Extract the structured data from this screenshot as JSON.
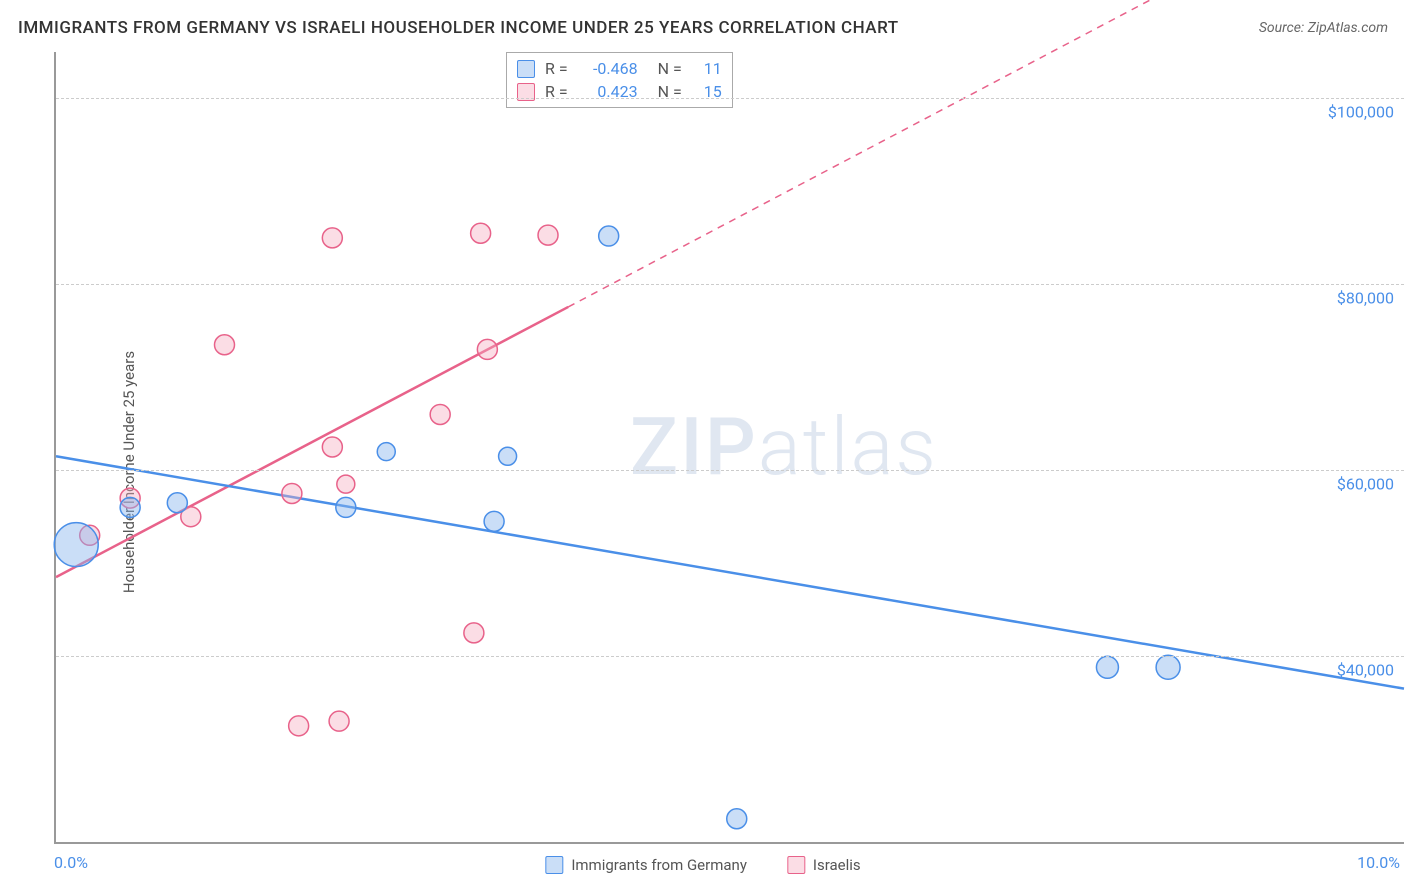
{
  "title": "IMMIGRANTS FROM GERMANY VS ISRAELI HOUSEHOLDER INCOME UNDER 25 YEARS CORRELATION CHART",
  "source": "Source: ZipAtlas.com",
  "y_axis_label": "Householder Income Under 25 years",
  "watermark_a": "ZIP",
  "watermark_b": "atlas",
  "chart": {
    "type": "scatter",
    "xlim": [
      0,
      10
    ],
    "ylim": [
      20000,
      105000
    ],
    "x_ticks": [
      {
        "value": 0,
        "label": "0.0%"
      },
      {
        "value": 10,
        "label": "10.0%"
      }
    ],
    "y_ticks": [
      {
        "value": 40000,
        "label": "$40,000"
      },
      {
        "value": 60000,
        "label": "$60,000"
      },
      {
        "value": 80000,
        "label": "$80,000"
      },
      {
        "value": 100000,
        "label": "$100,000"
      }
    ],
    "grid_color": "#cccccc",
    "background_color": "#ffffff",
    "axis_color": "#999999",
    "tick_label_color": "#4a8fe8",
    "series": [
      {
        "name": "Immigrants from Germany",
        "legend_label": "Immigrants from Germany",
        "fill": "rgba(137,181,237,0.45)",
        "stroke": "#4a8fe8",
        "line_width": 2.5,
        "marker_radius": 10,
        "correlation_R": "-0.468",
        "correlation_N": "11",
        "points": [
          {
            "x": 0.15,
            "y": 52000,
            "r": 22
          },
          {
            "x": 0.55,
            "y": 56000,
            "r": 10
          },
          {
            "x": 0.9,
            "y": 56500,
            "r": 10
          },
          {
            "x": 2.15,
            "y": 56000,
            "r": 10
          },
          {
            "x": 2.45,
            "y": 62000,
            "r": 9
          },
          {
            "x": 3.25,
            "y": 54500,
            "r": 10
          },
          {
            "x": 3.35,
            "y": 61500,
            "r": 9
          },
          {
            "x": 4.1,
            "y": 85200,
            "r": 10
          },
          {
            "x": 5.05,
            "y": 22500,
            "r": 10
          },
          {
            "x": 7.8,
            "y": 38800,
            "r": 11
          },
          {
            "x": 8.25,
            "y": 38800,
            "r": 12
          }
        ],
        "trend": {
          "x1": 0,
          "y1": 61500,
          "x2": 10,
          "y2": 36500,
          "solid_until_x": 10
        }
      },
      {
        "name": "Israelis",
        "legend_label": "Israelis",
        "fill": "rgba(244,170,190,0.40)",
        "stroke": "#e8628a",
        "line_width": 2.5,
        "marker_radius": 10,
        "correlation_R": "0.423",
        "correlation_N": "15",
        "points": [
          {
            "x": 0.25,
            "y": 53000,
            "r": 10
          },
          {
            "x": 0.55,
            "y": 57000,
            "r": 10
          },
          {
            "x": 1.0,
            "y": 55000,
            "r": 10
          },
          {
            "x": 1.25,
            "y": 73500,
            "r": 10
          },
          {
            "x": 1.75,
            "y": 57500,
            "r": 10
          },
          {
            "x": 1.8,
            "y": 32500,
            "r": 10
          },
          {
            "x": 2.05,
            "y": 85000,
            "r": 10
          },
          {
            "x": 2.05,
            "y": 62500,
            "r": 10
          },
          {
            "x": 2.1,
            "y": 33000,
            "r": 10
          },
          {
            "x": 2.85,
            "y": 66000,
            "r": 10
          },
          {
            "x": 3.1,
            "y": 42500,
            "r": 10
          },
          {
            "x": 3.15,
            "y": 85500,
            "r": 10
          },
          {
            "x": 3.2,
            "y": 73000,
            "r": 10
          },
          {
            "x": 3.65,
            "y": 85300,
            "r": 10
          },
          {
            "x": 2.15,
            "y": 58500,
            "r": 9
          }
        ],
        "trend": {
          "x1": 0,
          "y1": 48500,
          "x2": 10,
          "y2": 125000,
          "solid_until_x": 3.8
        }
      }
    ],
    "corr_labels": {
      "R": "R  =",
      "N": "N  ="
    }
  },
  "x_legend": [
    {
      "label": "Immigrants from Germany",
      "fill": "rgba(137,181,237,0.45)",
      "stroke": "#4a8fe8"
    },
    {
      "label": "Israelis",
      "fill": "rgba(244,170,190,0.40)",
      "stroke": "#e8628a"
    }
  ]
}
